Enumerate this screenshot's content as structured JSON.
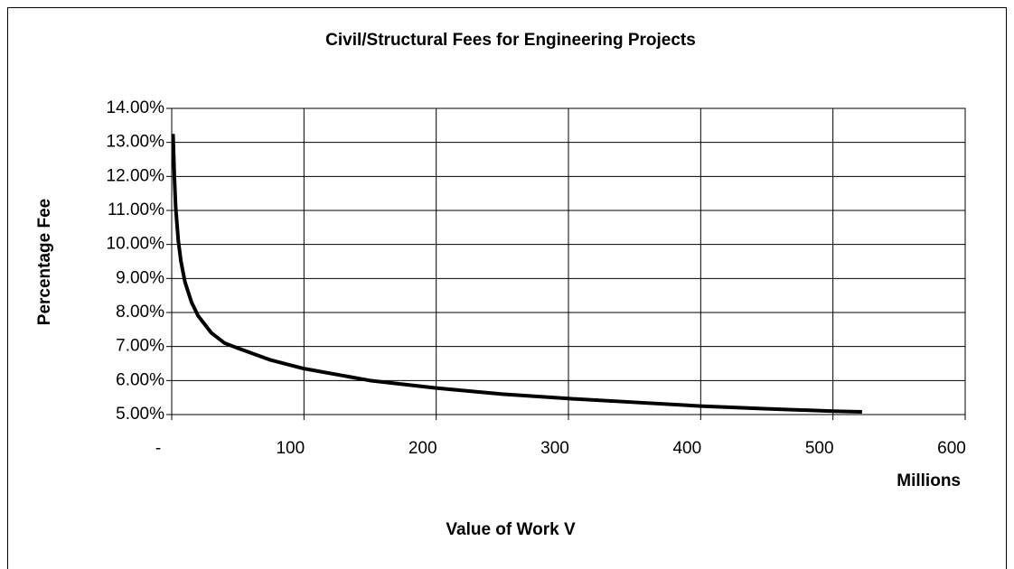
{
  "chart_data": {
    "type": "line",
    "title": "Civil/Structural Fees for Engineering Projects",
    "y_label": "Percentage Fee",
    "x_label": "Value of Work V",
    "x_unit": "Millions",
    "x": [
      1,
      2,
      3,
      5,
      7,
      10,
      15,
      20,
      30,
      40,
      50,
      75,
      100,
      150,
      200,
      250,
      300,
      350,
      400,
      450,
      500,
      522
    ],
    "series": [
      {
        "color": "#000000",
        "values": [
          13.25,
          12.0,
          11.1,
          10.1,
          9.5,
          8.9,
          8.3,
          7.9,
          7.4,
          7.1,
          6.95,
          6.6,
          6.35,
          6.0,
          5.78,
          5.6,
          5.47,
          5.36,
          5.25,
          5.17,
          5.1,
          5.08
        ]
      }
    ],
    "xlim": [
      0,
      600
    ],
    "xticks": [
      {
        "value": 0,
        "label": "-"
      },
      100,
      200,
      300,
      400,
      500,
      600
    ],
    "ylim": [
      5,
      14
    ],
    "yticks": [
      {
        "value": 5,
        "label": "5.00%"
      },
      {
        "value": 6,
        "label": "6.00%"
      },
      {
        "value": 7,
        "label": "7.00%"
      },
      {
        "value": 8,
        "label": "8.00%"
      },
      {
        "value": 9,
        "label": "9.00%"
      },
      {
        "value": 10,
        "label": "10.00%"
      },
      {
        "value": 11,
        "label": "11.00%"
      },
      {
        "value": 12,
        "label": "12.00%"
      },
      {
        "value": 13,
        "label": "13.00%"
      },
      {
        "value": 14,
        "label": "14.00%"
      }
    ],
    "grid": true
  }
}
